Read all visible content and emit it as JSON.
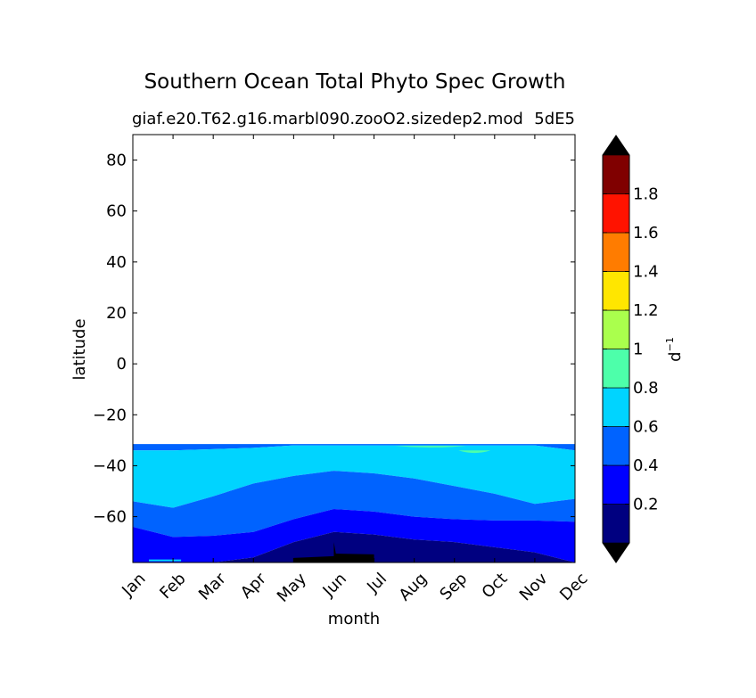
{
  "chart_data": {
    "type": "heatmap",
    "subtype": "filled-contour",
    "title": "Southern Ocean Total Phyto Spec Growth",
    "subtitle_left": "giaf.e20.T62.g16.marbl090.zooO2.sizedep2.mod",
    "subtitle_right": "5dE5",
    "xlabel": "month",
    "ylabel": "latitude",
    "x_tick_labels": [
      "Jan",
      "Feb",
      "Mar",
      "Apr",
      "May",
      "Jun",
      "Jul",
      "Aug",
      "Sep",
      "Oct",
      "Nov",
      "Dec"
    ],
    "x_ticks": [
      0,
      1,
      2,
      3,
      4,
      5,
      6,
      7,
      8,
      9,
      10,
      11
    ],
    "xlim": [
      0,
      11
    ],
    "ylim": [
      -78,
      90
    ],
    "y_ticks": [
      80,
      60,
      40,
      20,
      0,
      -20,
      -40,
      -60
    ],
    "y_tick_labels": [
      "80",
      "60",
      "40",
      "20",
      "0",
      "−20",
      "−40",
      "−60"
    ],
    "data_extent_lat_max": -31.5,
    "contour_levels": [
      0,
      0.2,
      0.4,
      0.6,
      0.8,
      1.0,
      1.2,
      1.4,
      1.6,
      1.8,
      2.0
    ],
    "level_colors": [
      "#000080",
      "#0000ff",
      "#0063ff",
      "#00d4ff",
      "#4dffaa",
      "#aaff4d",
      "#ffe600",
      "#ff7c00",
      "#ff1300",
      "#800000"
    ],
    "under_color": "#000000",
    "over_color": "#000000",
    "colorbar": {
      "label": "d",
      "label_exponent": "−1",
      "tick_values": [
        0.2,
        0.4,
        0.6,
        0.8,
        1.0,
        1.2,
        1.4,
        1.6,
        1.8
      ],
      "tick_labels": [
        "0.2",
        "0.4",
        "0.6",
        "0.8",
        "1",
        "1.2",
        "1.4",
        "1.6",
        "1.8"
      ],
      "extend": "both"
    },
    "contour_boundaries": {
      "months": [
        0,
        1,
        2,
        3,
        4,
        5,
        6,
        7,
        8,
        9,
        10,
        11
      ],
      "lat_0_2_band_edge": [
        -78,
        -78,
        -78,
        -76,
        -70,
        -66,
        -67,
        -69,
        -70,
        -72,
        -74,
        -78
      ],
      "lat_0_4_band_edge": [
        -64,
        -68,
        -67.5,
        -66,
        -61,
        -57,
        -58,
        -60,
        -61,
        -61.5,
        -61.5,
        -62
      ],
      "lat_0_6_band_edge": [
        -54,
        -56.5,
        -52,
        -47,
        -44,
        -42,
        -43,
        -45,
        -48,
        -51,
        -55,
        -53
      ],
      "lat_0_8_band_edge": [
        -34,
        -34,
        -33.5,
        -33,
        -32,
        -32,
        -32,
        -32,
        -32,
        -32,
        -32,
        -34
      ]
    }
  }
}
